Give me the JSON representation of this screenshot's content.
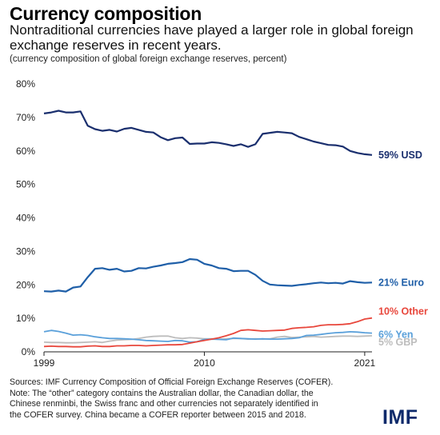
{
  "header": {
    "title": "Currency composition",
    "subtitle": "Nontraditional currencies have played a larger role in global foreign exchange reserves in recent years.",
    "caption": "(currency composition of global foreign exchange reserves, percent)"
  },
  "notes": {
    "line1": "Sources: IMF Currency Composition of Official Foreign Exchange Reserves (COFER).",
    "line2": "Note: The “other” category contains the Australian dollar, the Canadian dollar, the",
    "line3": "Chinese renminbi, the Swiss franc and other currencies not separately identified in",
    "line4": "the COFER survey. China became a COFER reporter between 2015 and 2018."
  },
  "logo": "IMF",
  "chart_data": {
    "type": "line",
    "xlim": [
      1999,
      2021.5
    ],
    "ylim": [
      0,
      80
    ],
    "y_ticks": [
      0,
      10,
      20,
      30,
      40,
      50,
      60,
      70,
      80
    ],
    "y_tick_labels": [
      "0%",
      "10%",
      "20%",
      "30%",
      "40%",
      "50%",
      "60%",
      "70%",
      "80%"
    ],
    "x_ticks": [
      1999,
      2010,
      2021
    ],
    "x_tick_labels": [
      "1999",
      "2010",
      "2021"
    ],
    "grid": false,
    "series": [
      {
        "name": "USD",
        "end_label": "59% USD",
        "color": "#1a2f6e",
        "x": [
          1999,
          1999.5,
          2000,
          2000.5,
          2001,
          2001.5,
          2002,
          2002.5,
          2003,
          2003.5,
          2004,
          2004.5,
          2005,
          2005.5,
          2006,
          2006.5,
          2007,
          2007.5,
          2008,
          2008.5,
          2009,
          2009.5,
          2010,
          2010.5,
          2011,
          2011.5,
          2012,
          2012.5,
          2013,
          2013.5,
          2014,
          2014.5,
          2015,
          2015.5,
          2016,
          2016.5,
          2017,
          2017.5,
          2018,
          2018.5,
          2019,
          2019.5,
          2020,
          2020.5,
          2021,
          2021.5
        ],
        "values": [
          71.2,
          71.5,
          72.0,
          71.5,
          71.5,
          71.8,
          67.5,
          66.5,
          66.0,
          66.3,
          65.8,
          66.6,
          66.9,
          66.3,
          65.7,
          65.5,
          64.1,
          63.2,
          63.8,
          64.0,
          62.1,
          62.2,
          62.2,
          62.6,
          62.4,
          62.0,
          61.5,
          62.0,
          61.2,
          62.0,
          65.1,
          65.4,
          65.7,
          65.5,
          65.3,
          64.2,
          63.5,
          62.8,
          62.3,
          61.8,
          61.7,
          61.3,
          60.0,
          59.4,
          59.0,
          58.8
        ]
      },
      {
        "name": "Euro",
        "end_label": "21% Euro",
        "color": "#1f5fa8",
        "x": [
          1999,
          1999.5,
          2000,
          2000.5,
          2001,
          2001.5,
          2002,
          2002.5,
          2003,
          2003.5,
          2004,
          2004.5,
          2005,
          2005.5,
          2006,
          2006.5,
          2007,
          2007.5,
          2008,
          2008.5,
          2009,
          2009.5,
          2010,
          2010.5,
          2011,
          2011.5,
          2012,
          2012.5,
          2013,
          2013.5,
          2014,
          2014.5,
          2015,
          2015.5,
          2016,
          2016.5,
          2017,
          2017.5,
          2018,
          2018.5,
          2019,
          2019.5,
          2020,
          2020.5,
          2021,
          2021.5
        ],
        "values": [
          18.1,
          18.0,
          18.3,
          18.0,
          19.2,
          19.5,
          22.3,
          24.8,
          25.0,
          24.5,
          24.8,
          24.0,
          24.2,
          25.0,
          24.9,
          25.4,
          25.8,
          26.3,
          26.5,
          26.8,
          27.7,
          27.5,
          26.3,
          25.8,
          25.0,
          24.8,
          24.1,
          24.2,
          24.2,
          23.0,
          21.2,
          20.1,
          19.9,
          19.8,
          19.7,
          20.0,
          20.2,
          20.5,
          20.7,
          20.5,
          20.6,
          20.4,
          21.1,
          20.8,
          20.6,
          20.7
        ]
      },
      {
        "name": "Other",
        "end_label": "10% Other",
        "color": "#e8473c",
        "x": [
          1999,
          1999.5,
          2000,
          2000.5,
          2001,
          2001.5,
          2002,
          2002.5,
          2003,
          2003.5,
          2004,
          2004.5,
          2005,
          2005.5,
          2006,
          2006.5,
          2007,
          2007.5,
          2008,
          2008.5,
          2009,
          2009.5,
          2010,
          2010.5,
          2011,
          2011.5,
          2012,
          2012.5,
          2013,
          2013.5,
          2014,
          2014.5,
          2015,
          2015.5,
          2016,
          2016.5,
          2017,
          2017.5,
          2018,
          2018.5,
          2019,
          2019.5,
          2020,
          2020.5,
          2021,
          2021.5
        ],
        "values": [
          1.6,
          1.7,
          1.6,
          1.6,
          1.5,
          1.5,
          1.7,
          1.8,
          1.6,
          1.6,
          1.8,
          1.8,
          1.9,
          1.9,
          1.8,
          1.9,
          2.0,
          2.1,
          2.1,
          2.2,
          2.6,
          3.0,
          3.4,
          3.8,
          4.2,
          4.8,
          5.5,
          6.4,
          6.6,
          6.4,
          6.2,
          6.3,
          6.4,
          6.5,
          7.0,
          7.2,
          7.3,
          7.5,
          7.9,
          8.1,
          8.1,
          8.2,
          8.4,
          9.0,
          9.8,
          10.1
        ]
      },
      {
        "name": "Yen",
        "end_label": "6% Yen",
        "color": "#5aa0da",
        "x": [
          1999,
          1999.5,
          2000,
          2000.5,
          2001,
          2001.5,
          2002,
          2002.5,
          2003,
          2003.5,
          2004,
          2004.5,
          2005,
          2005.5,
          2006,
          2006.5,
          2007,
          2007.5,
          2008,
          2008.5,
          2009,
          2009.5,
          2010,
          2010.5,
          2011,
          2011.5,
          2012,
          2012.5,
          2013,
          2013.5,
          2014,
          2014.5,
          2015,
          2015.5,
          2016,
          2016.5,
          2017,
          2017.5,
          2018,
          2018.5,
          2019,
          2019.5,
          2020,
          2020.5,
          2021,
          2021.5
        ],
        "values": [
          6.0,
          6.4,
          6.1,
          5.6,
          5.0,
          5.1,
          4.9,
          4.5,
          4.2,
          4.0,
          4.0,
          3.9,
          3.8,
          3.6,
          3.4,
          3.3,
          3.2,
          3.1,
          3.4,
          3.3,
          2.9,
          3.0,
          3.7,
          3.8,
          3.7,
          3.6,
          4.1,
          4.0,
          3.9,
          3.8,
          3.9,
          3.8,
          3.8,
          3.9,
          4.0,
          4.2,
          4.9,
          5.0,
          5.2,
          5.5,
          5.7,
          5.8,
          6.0,
          5.9,
          5.7,
          5.6
        ]
      },
      {
        "name": "GBP",
        "end_label": "5% GBP",
        "color": "#bdbdbd",
        "x": [
          1999,
          1999.5,
          2000,
          2000.5,
          2001,
          2001.5,
          2002,
          2002.5,
          2003,
          2003.5,
          2004,
          2004.5,
          2005,
          2005.5,
          2006,
          2006.5,
          2007,
          2007.5,
          2008,
          2008.5,
          2009,
          2009.5,
          2010,
          2010.5,
          2011,
          2011.5,
          2012,
          2012.5,
          2013,
          2013.5,
          2014,
          2014.5,
          2015,
          2015.5,
          2016,
          2016.5,
          2017,
          2017.5,
          2018,
          2018.5,
          2019,
          2019.5,
          2020,
          2020.5,
          2021,
          2021.5
        ],
        "values": [
          2.9,
          2.8,
          2.8,
          2.7,
          2.7,
          2.8,
          2.9,
          3.0,
          2.8,
          3.2,
          3.5,
          3.6,
          3.7,
          4.0,
          4.4,
          4.6,
          4.7,
          4.7,
          4.2,
          4.0,
          4.2,
          4.1,
          3.9,
          3.9,
          3.8,
          3.9,
          4.0,
          4.0,
          3.8,
          3.9,
          3.8,
          3.9,
          4.4,
          4.6,
          4.3,
          4.4,
          4.5,
          4.6,
          4.4,
          4.5,
          4.6,
          4.7,
          4.7,
          4.6,
          4.7,
          4.8
        ]
      }
    ]
  }
}
